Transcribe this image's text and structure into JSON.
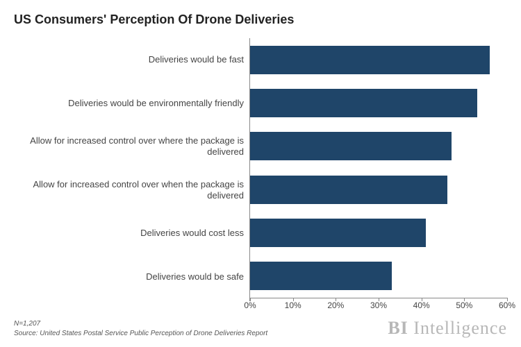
{
  "chart": {
    "type": "bar-horizontal",
    "title": "US Consumers' Perception Of Drone Deliveries",
    "title_fontsize": 18,
    "title_color": "#222222",
    "background_color": "#ffffff",
    "bar_color": "#1f4569",
    "axis_color": "#888888",
    "label_color": "#444444",
    "label_fontsize": 13,
    "tick_fontsize": 12,
    "xlim": [
      0,
      60
    ],
    "xtick_step": 10,
    "xtick_suffix": "%",
    "ticks": [
      {
        "value": 0,
        "label": "0%"
      },
      {
        "value": 10,
        "label": "10%"
      },
      {
        "value": 20,
        "label": "20%"
      },
      {
        "value": 30,
        "label": "30%"
      },
      {
        "value": 40,
        "label": "40%"
      },
      {
        "value": 50,
        "label": "50%"
      },
      {
        "value": 60,
        "label": "60%"
      }
    ],
    "categories": [
      {
        "label": "Deliveries would be fast",
        "value": 56
      },
      {
        "label": "Deliveries would be environmentally friendly",
        "value": 53
      },
      {
        "label": "Allow for increased control over where the package is delivered",
        "value": 47
      },
      {
        "label": "Allow for increased control over when the package is delivered",
        "value": 46
      },
      {
        "label": "Deliveries would cost less",
        "value": 41
      },
      {
        "label": "Deliveries would be safe",
        "value": 33
      }
    ]
  },
  "footer": {
    "sample": "N=1,207",
    "source": "Source: United States Postal Service Public Perception of Drone Deliveries Report",
    "note_fontsize": 10,
    "note_color": "#555555"
  },
  "brand": {
    "prefix": "BI",
    "suffix": "Intelligence",
    "color": "#b7b7b7",
    "fontsize": 26
  }
}
